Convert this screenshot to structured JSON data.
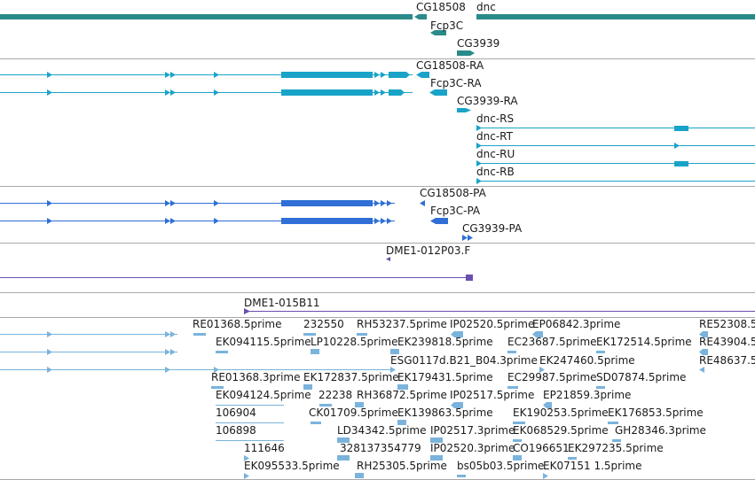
{
  "tracks": {
    "genes": {
      "color": "#2a8a8a",
      "labels": [
        "CG18508",
        "dnc",
        "Fcp3C",
        "CG3939"
      ]
    },
    "transcripts": {
      "color": "#1aa3c8",
      "labels": [
        "CG18508-RA",
        "Fcp3C-RA",
        "CG3939-RA",
        "dnc-RS",
        "dnc-RT",
        "dnc-RU",
        "dnc-RB"
      ]
    },
    "proteins": {
      "color": "#2f6fd6",
      "labels": [
        "CG18508-PA",
        "Fcp3C-PA",
        "CG3939-PA"
      ]
    },
    "clones": {
      "color": "#6a4fb0",
      "labels": [
        "DME1-012P03.F",
        "DME1-015B11"
      ]
    },
    "ests": {
      "color": "#7ab3dc",
      "labels": [
        "RE01368.5prime",
        "232550",
        "RH53237.5prime",
        "IP02520.5prime",
        "EP06842.3prime",
        "RE52308.5",
        "EK094115.5prime",
        "LP10228.5prime",
        "EK239818.5prime",
        "EC23687.5prime",
        "EK172514.5prime",
        "RE43904.5",
        "ESG0117d.B21_B04.3prime",
        "EK247460.5prime",
        "RE48637.5",
        "RE01368.3prime",
        "EK172837.5prime",
        "EK179431.5prime",
        "EC29987.5prime",
        "SD07874.5prime",
        "EK094124.5prime",
        "22238",
        "RH36872.5prime",
        "IP02517.5prime",
        "EP21859.3prime",
        "106904",
        "CK01709.5prime",
        "EK139863.5prime",
        "EK190253.5prime",
        "EK176853.5prime",
        "106898",
        "LD34342.5prime",
        "IP02517.3prime",
        "EK068529.5prime",
        "GH28346.3prime",
        "111646",
        "328137354779",
        "IP02520.3prime",
        "CO196651",
        "EK297235.5prime",
        "EK095533.5prime",
        "RH25305.5prime",
        "bs05b03.5prime",
        "EK07151 1.5prime"
      ]
    }
  }
}
